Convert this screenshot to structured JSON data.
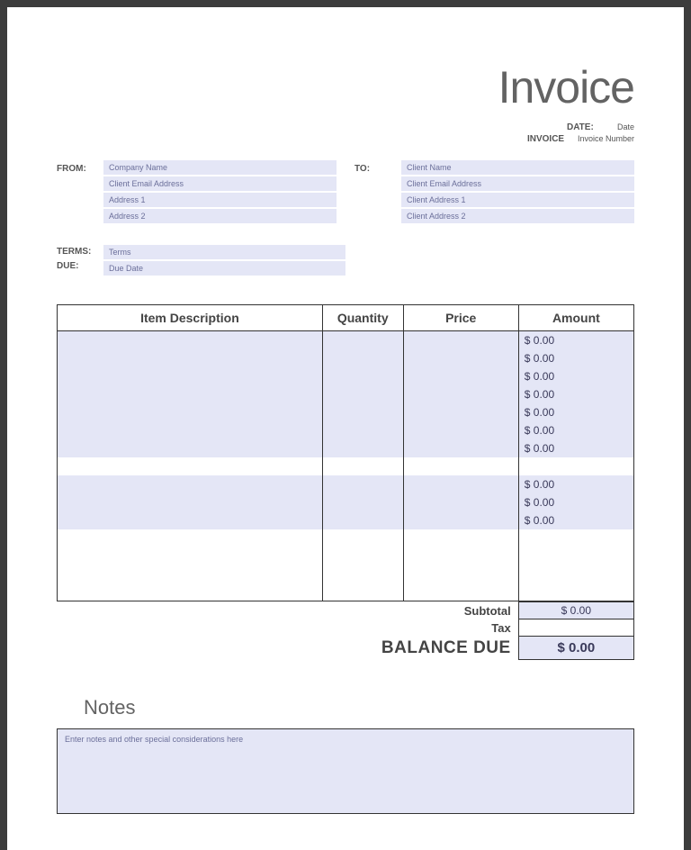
{
  "title": "Invoice",
  "meta": {
    "date_label": "DATE:",
    "date_value": "Date",
    "invoice_label": "INVOICE",
    "invoice_value": "Invoice Number"
  },
  "from": {
    "label": "FROM:",
    "company": "Company Name",
    "email": "Client Email Address",
    "address1": "Address 1",
    "address2": "Address 2"
  },
  "to": {
    "label": "TO:",
    "name": "Client Name",
    "email": "Client Email Address",
    "address1": "Client Address 1",
    "address2": "Client Address 2"
  },
  "terms": {
    "terms_label": "TERMS:",
    "due_label": "DUE:",
    "terms_value": "Terms",
    "due_value": "Due Date"
  },
  "table": {
    "headers": {
      "desc": "Item Description",
      "qty": "Quantity",
      "price": "Price",
      "amount": "Amount"
    },
    "amount_default": "$ 0.00",
    "stripe_color": "#e4e6f6",
    "row_count": 15,
    "striped_rows": [
      0,
      1,
      2,
      3,
      4,
      5,
      6,
      8,
      9,
      10
    ],
    "amount_rows": [
      0,
      1,
      2,
      3,
      4,
      5,
      6,
      8,
      9,
      10
    ]
  },
  "totals": {
    "subtotal_label": "Subtotal",
    "subtotal_value": "$ 0.00",
    "tax_label": "Tax",
    "tax_value": "",
    "balance_label": "BALANCE DUE",
    "balance_value": "$ 0.00"
  },
  "notes": {
    "title": "Notes",
    "placeholder": "Enter notes and other special considerations here"
  },
  "colors": {
    "field_bg": "#e4e6f6",
    "page_bg": "#ffffff",
    "frame_bg": "#3c3c3c",
    "text_muted": "#6b6f9a",
    "heading": "#636363",
    "border": "#333333"
  }
}
